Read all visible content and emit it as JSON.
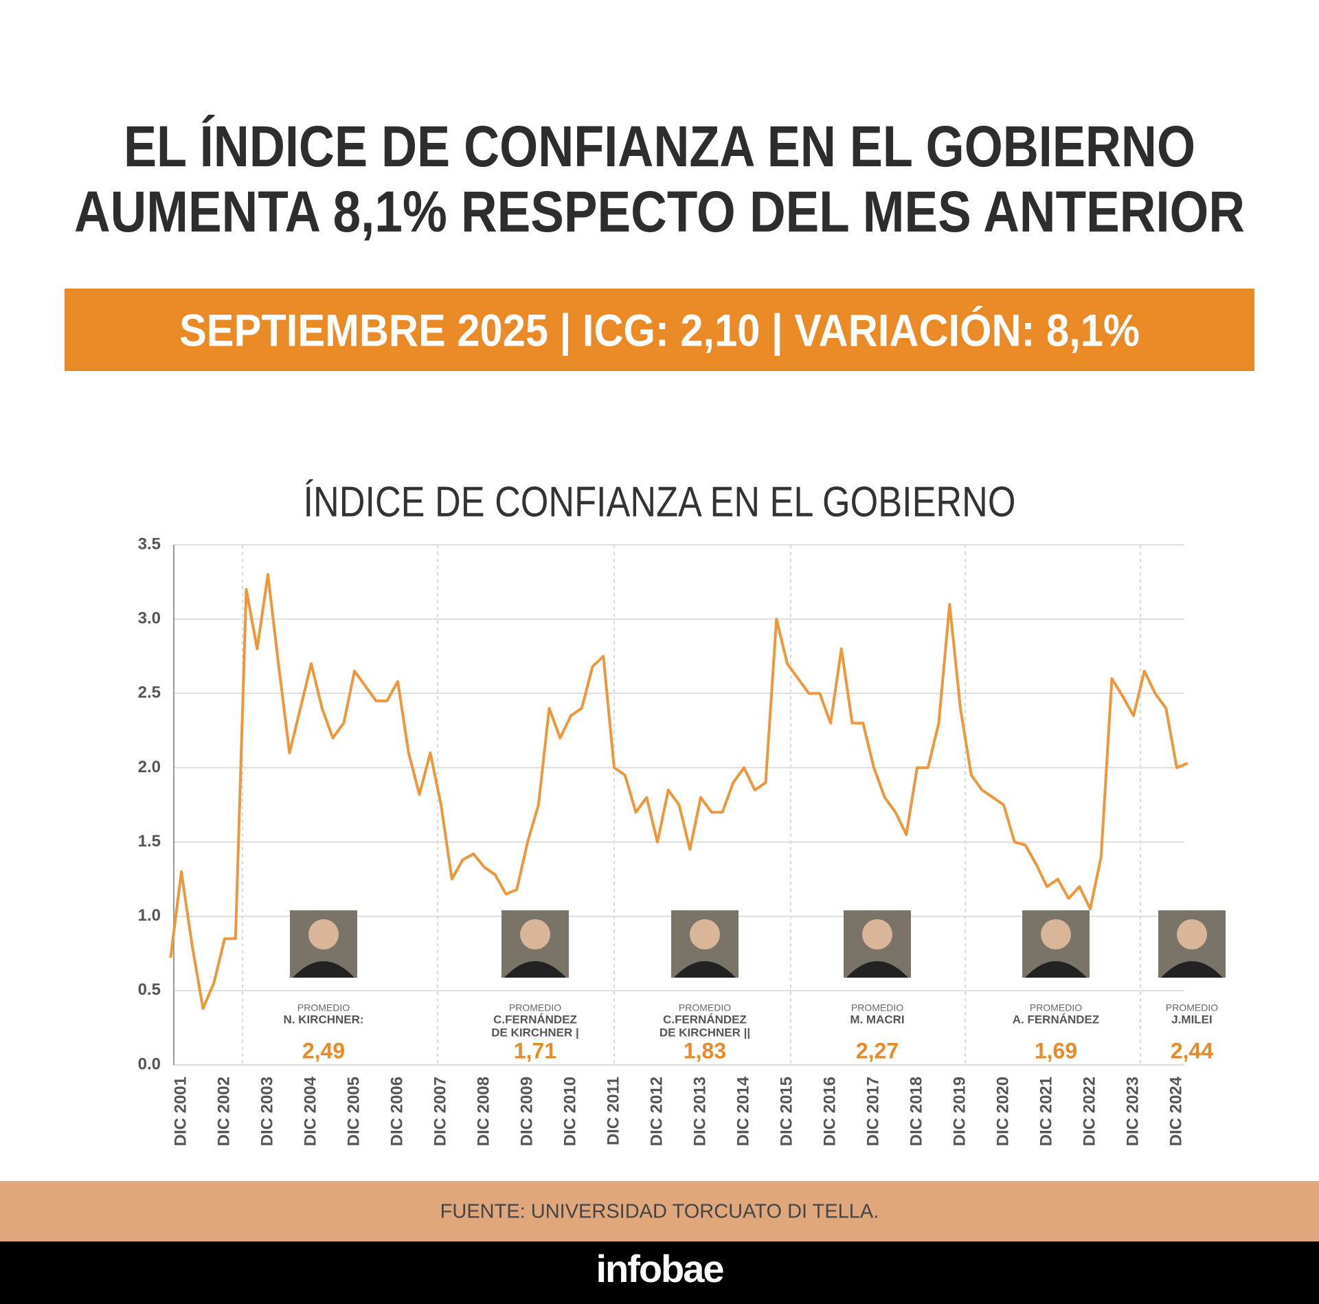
{
  "header": {
    "title_lines": [
      "EL ÍNDICE DE CONFIANZA EN EL GOBIERNO",
      "AUMENTA 8,1% RESPECTO DEL MES ANTERIOR"
    ],
    "banner": "SEPTIEMBRE 2025 | ICG: 2,10 | VARIACIÓN: 8,1%"
  },
  "chart_data": {
    "type": "line",
    "title": "ÍNDICE DE CONFIANZA EN EL GOBIERNO",
    "color": "#f0963a",
    "categories": [
      null,
      "DIC 2001",
      null,
      null,
      null,
      "DIC 2002",
      null,
      null,
      null,
      "DIC 2003",
      null,
      null,
      null,
      "DIC 2004",
      null,
      null,
      null,
      "DIC 2005",
      null,
      null,
      null,
      "DIC 2006",
      null,
      null,
      null,
      "DIC 2007",
      null,
      null,
      null,
      "DIC 2008",
      null,
      null,
      null,
      "DIC 2009",
      null,
      null,
      null,
      "DIC 2010",
      null,
      null,
      null,
      "DIC 2011",
      null,
      null,
      null,
      "DIC 2012",
      null,
      null,
      null,
      "DIC 2013",
      null,
      null,
      null,
      "DIC 2014",
      null,
      null,
      null,
      "DIC 2015",
      null,
      null,
      null,
      "DIC 2016",
      null,
      null,
      null,
      "DIC 2017",
      null,
      null,
      null,
      "DIC 2018",
      null,
      null,
      null,
      "DIC 2019",
      null,
      null,
      null,
      "DIC 2020",
      null,
      null,
      null,
      "DIC 2021",
      null,
      null,
      null,
      "DIC 2022",
      null,
      null,
      null,
      "DIC 2023",
      null,
      null,
      null,
      "DIC 2024",
      null
    ],
    "values": [
      0.72,
      1.3,
      0.8,
      0.38,
      0.55,
      0.85,
      0.85,
      3.2,
      2.8,
      3.3,
      2.68,
      2.1,
      2.4,
      2.7,
      2.4,
      2.2,
      2.3,
      2.65,
      2.55,
      2.45,
      2.45,
      2.58,
      2.1,
      1.82,
      2.1,
      1.75,
      1.25,
      1.38,
      1.42,
      1.33,
      1.28,
      1.15,
      1.18,
      1.5,
      1.75,
      2.4,
      2.2,
      2.35,
      2.4,
      2.68,
      2.75,
      2.0,
      1.95,
      1.7,
      1.8,
      1.5,
      1.85,
      1.75,
      1.45,
      1.8,
      1.7,
      1.7,
      1.9,
      2.0,
      1.85,
      1.9,
      3.0,
      2.7,
      2.6,
      2.5,
      2.5,
      2.3,
      2.8,
      2.3,
      2.3,
      2.0,
      1.8,
      1.7,
      1.55,
      2.0,
      2.0,
      2.3,
      3.1,
      2.4,
      1.95,
      1.85,
      1.8,
      1.75,
      1.5,
      1.48,
      1.35,
      1.2,
      1.25,
      1.12,
      1.2,
      1.05,
      1.4,
      2.6,
      2.48,
      2.35,
      2.65,
      2.5,
      2.4,
      2.0,
      2.03
    ],
    "ylim": [
      0,
      3.5
    ],
    "yticks": [
      {
        "value": 0,
        "label": "0.0"
      },
      {
        "value": 0.5,
        "label": "0.5"
      },
      {
        "value": 1,
        "label": "1.0"
      },
      {
        "value": 1.5,
        "label": "1.5"
      },
      {
        "value": 2,
        "label": "2.0"
      },
      {
        "value": 2.5,
        "label": "2.5"
      },
      {
        "value": 3,
        "label": "3.0"
      },
      {
        "value": 3.5,
        "label": "3.5"
      }
    ],
    "grid": true,
    "annotations": [
      {
        "label": "PROMEDIO",
        "name": [
          "N. KIRCHNER:"
        ],
        "value": "2,49"
      },
      {
        "label": "PROMEDIO",
        "name": [
          "C.FERNÁNDEZ",
          "DE KIRCHNER |"
        ],
        "value": "1,71"
      },
      {
        "label": "PROMEDIO",
        "name": [
          "C.FERNÁNDEZ",
          "DE KIRCHNER ||"
        ],
        "value": "1,83"
      },
      {
        "label": "PROMEDIO",
        "name": [
          "M. MACRI"
        ],
        "value": "2,27"
      },
      {
        "label": "PROMEDIO",
        "name": [
          "A. FERNÁNDEZ"
        ],
        "value": "1,69"
      },
      {
        "label": "PROMEDIO",
        "name": [
          "J.MILEI"
        ],
        "value": "2,44"
      }
    ]
  },
  "footer": {
    "source": "FUENTE: UNIVERSIDAD TORCUATO DI TELLA.",
    "brand": "infobae"
  }
}
